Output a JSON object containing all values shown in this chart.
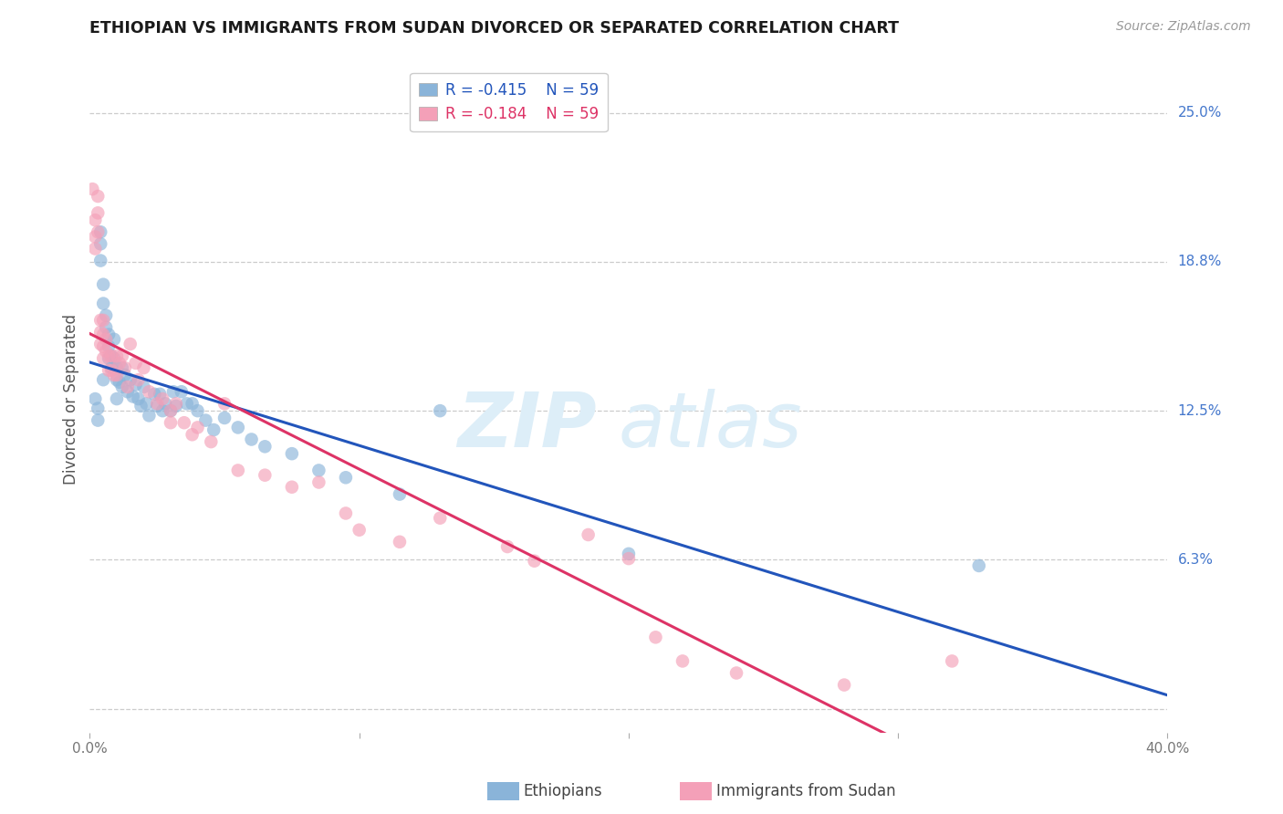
{
  "title": "ETHIOPIAN VS IMMIGRANTS FROM SUDAN DIVORCED OR SEPARATED CORRELATION CHART",
  "source": "Source: ZipAtlas.com",
  "ylabel": "Divorced or Separated",
  "xlim": [
    0.0,
    0.4
  ],
  "ylim": [
    -0.01,
    0.27
  ],
  "ytick_vals": [
    0.0,
    0.0625,
    0.125,
    0.1875,
    0.25
  ],
  "ytick_labels": [
    "",
    "6.3%",
    "12.5%",
    "18.8%",
    "25.0%"
  ],
  "xtick_vals": [
    0.0,
    0.1,
    0.2,
    0.3,
    0.4
  ],
  "xtick_labels": [
    "0.0%",
    "",
    "",
    "",
    "40.0%"
  ],
  "blue_color": "#8ab4d9",
  "pink_color": "#f4a0b8",
  "trendline_blue": "#2255bb",
  "trendline_pink": "#dd3366",
  "trendline_dashed": "#e8b8c8",
  "legend_R_blue": "-0.415",
  "legend_N_blue": "59",
  "legend_R_pink": "-0.184",
  "legend_N_pink": "59",
  "eth_x": [
    0.002,
    0.003,
    0.003,
    0.004,
    0.004,
    0.004,
    0.005,
    0.005,
    0.005,
    0.006,
    0.006,
    0.007,
    0.007,
    0.007,
    0.008,
    0.008,
    0.009,
    0.009,
    0.01,
    0.01,
    0.01,
    0.011,
    0.012,
    0.012,
    0.013,
    0.014,
    0.015,
    0.016,
    0.017,
    0.018,
    0.019,
    0.02,
    0.021,
    0.022,
    0.024,
    0.025,
    0.026,
    0.027,
    0.028,
    0.03,
    0.031,
    0.032,
    0.034,
    0.036,
    0.038,
    0.04,
    0.043,
    0.046,
    0.05,
    0.055,
    0.06,
    0.065,
    0.075,
    0.085,
    0.095,
    0.115,
    0.13,
    0.2,
    0.33
  ],
  "eth_y": [
    0.13,
    0.126,
    0.121,
    0.2,
    0.195,
    0.188,
    0.178,
    0.17,
    0.138,
    0.165,
    0.16,
    0.157,
    0.152,
    0.147,
    0.148,
    0.143,
    0.155,
    0.147,
    0.143,
    0.138,
    0.13,
    0.137,
    0.143,
    0.135,
    0.14,
    0.133,
    0.138,
    0.131,
    0.136,
    0.13,
    0.127,
    0.135,
    0.128,
    0.123,
    0.132,
    0.127,
    0.132,
    0.125,
    0.128,
    0.125,
    0.133,
    0.127,
    0.133,
    0.128,
    0.128,
    0.125,
    0.121,
    0.117,
    0.122,
    0.118,
    0.113,
    0.11,
    0.107,
    0.1,
    0.097,
    0.09,
    0.125,
    0.065,
    0.06
  ],
  "sud_x": [
    0.001,
    0.002,
    0.002,
    0.002,
    0.003,
    0.003,
    0.003,
    0.004,
    0.004,
    0.004,
    0.005,
    0.005,
    0.005,
    0.005,
    0.006,
    0.006,
    0.007,
    0.007,
    0.008,
    0.008,
    0.009,
    0.01,
    0.01,
    0.011,
    0.012,
    0.013,
    0.014,
    0.015,
    0.017,
    0.018,
    0.02,
    0.022,
    0.025,
    0.027,
    0.03,
    0.03,
    0.032,
    0.035,
    0.038,
    0.04,
    0.045,
    0.05,
    0.055,
    0.065,
    0.075,
    0.085,
    0.095,
    0.1,
    0.115,
    0.13,
    0.155,
    0.165,
    0.185,
    0.2,
    0.21,
    0.22,
    0.24,
    0.28,
    0.32
  ],
  "sud_y": [
    0.218,
    0.205,
    0.198,
    0.193,
    0.215,
    0.208,
    0.2,
    0.163,
    0.158,
    0.153,
    0.163,
    0.157,
    0.152,
    0.147,
    0.155,
    0.15,
    0.148,
    0.142,
    0.148,
    0.142,
    0.14,
    0.148,
    0.14,
    0.145,
    0.148,
    0.143,
    0.135,
    0.153,
    0.145,
    0.138,
    0.143,
    0.133,
    0.128,
    0.13,
    0.125,
    0.12,
    0.128,
    0.12,
    0.115,
    0.118,
    0.112,
    0.128,
    0.1,
    0.098,
    0.093,
    0.095,
    0.082,
    0.075,
    0.07,
    0.08,
    0.068,
    0.062,
    0.073,
    0.063,
    0.03,
    0.02,
    0.015,
    0.01,
    0.02
  ]
}
